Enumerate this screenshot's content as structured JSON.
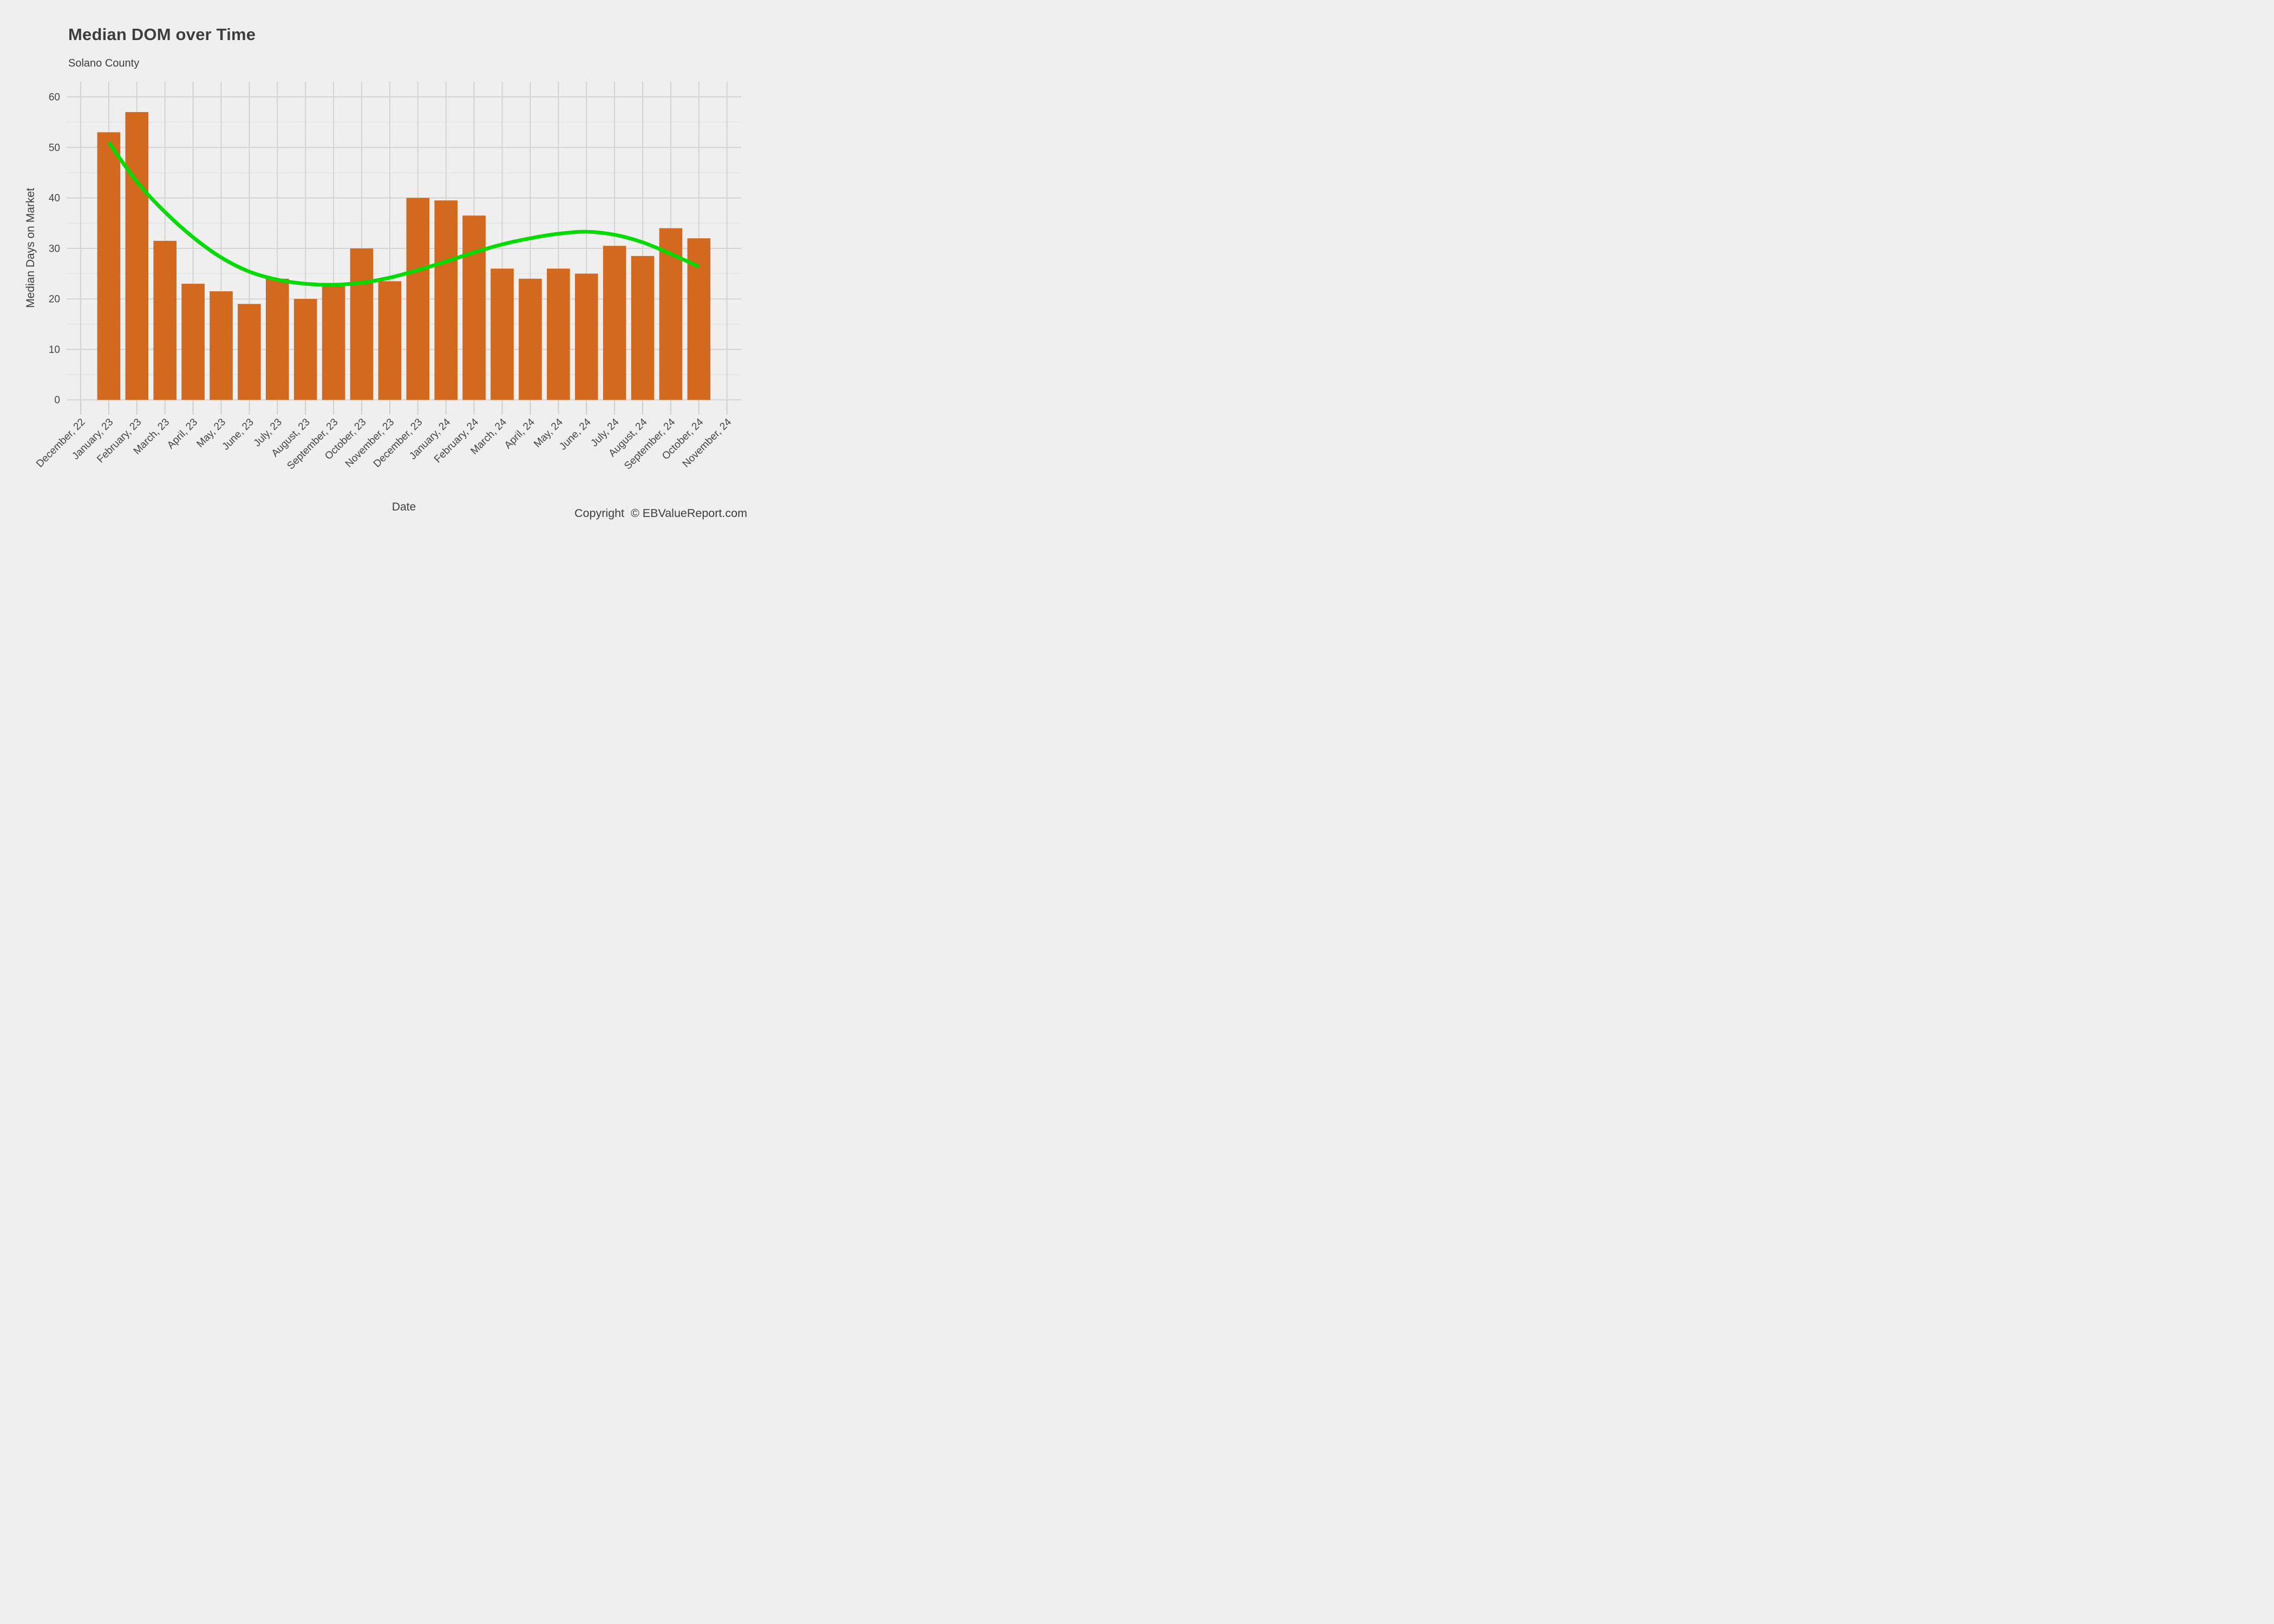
{
  "copyright": "Copyright  © EBValueReport.com",
  "colors": {
    "background": "#EFEFEF",
    "bar": "#D2691E",
    "trend_line": "#00DC00",
    "grid_major": "#D2D2D2",
    "grid_minor": "#E2E2E2",
    "tick_mark": "#CDCDCD",
    "text": "#3D3D3D",
    "tick_label": "#444444"
  },
  "chart_data": {
    "type": "bar",
    "title": "Median DOM over Time",
    "subtitle": "Solano County",
    "xlabel": "Date",
    "ylabel": "Median Days on Market",
    "ylim": [
      0,
      63
    ],
    "yticks": [
      0,
      10,
      20,
      30,
      40,
      50,
      60
    ],
    "yticks_minor": [
      5,
      15,
      25,
      35,
      45,
      55
    ],
    "grid": "horizontal major+minor, vertical major per month",
    "legend_position": "none",
    "x_tick_angle": -45,
    "categories": [
      "December, 22",
      "January, 23",
      "February, 23",
      "March, 23",
      "April, 23",
      "May, 23",
      "June, 23",
      "July, 23",
      "August, 23",
      "September, 23",
      "October, 23",
      "November, 23",
      "December, 23",
      "January, 24",
      "February, 24",
      "March, 24",
      "April, 24",
      "May, 24",
      "June, 24",
      "July, 24",
      "August, 24",
      "September, 24",
      "October, 24",
      "November, 24"
    ],
    "series": [
      {
        "name": "Median Days on Market",
        "type": "bar",
        "color": "#D2691E",
        "values": [
          null,
          53,
          57,
          31.5,
          23,
          21.5,
          19,
          24,
          20,
          22.5,
          30,
          23.5,
          40,
          39.5,
          36.5,
          26,
          24,
          26,
          25,
          30.5,
          28.5,
          34,
          32,
          null
        ]
      },
      {
        "name": "Smoothed trend",
        "type": "line",
        "color": "#00DC00",
        "values": [
          null,
          51,
          43.2,
          37.2,
          32.2,
          28.2,
          25.4,
          23.8,
          23,
          22.8,
          23.2,
          24.2,
          25.7,
          27.4,
          29.2,
          30.8,
          32,
          32.9,
          33.3,
          32.7,
          31.2,
          28.9,
          26.4,
          null
        ]
      }
    ]
  }
}
